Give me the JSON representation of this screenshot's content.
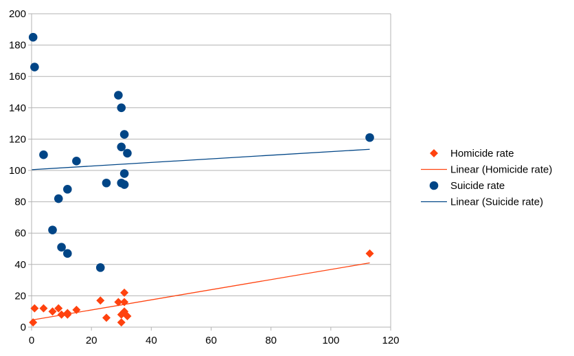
{
  "chart_data": {
    "type": "scatter",
    "title": "",
    "xlabel": "",
    "ylabel": "",
    "xlim": [
      0,
      120
    ],
    "ylim": [
      0,
      200
    ],
    "xticks": [
      0,
      20,
      40,
      60,
      80,
      100,
      120
    ],
    "yticks": [
      0,
      20,
      40,
      60,
      80,
      100,
      120,
      140,
      160,
      180,
      200
    ],
    "grid": "horizontal",
    "legend_position": "right",
    "series": [
      {
        "name": "Homicide rate",
        "marker": "diamond",
        "color": "#ff420e",
        "x": [
          0.5,
          1,
          4,
          7,
          9,
          10,
          12,
          12,
          15,
          23,
          25,
          29,
          30,
          30,
          31,
          31,
          31,
          32,
          113
        ],
        "y": [
          3,
          12,
          12,
          10,
          12,
          8,
          9,
          8,
          11,
          17,
          6,
          16,
          3,
          8,
          22,
          16,
          10,
          7,
          47
        ]
      },
      {
        "name": "Suicide rate",
        "marker": "circle",
        "color": "#004586",
        "x": [
          0.5,
          1,
          4,
          7,
          9,
          10,
          12,
          12,
          15,
          23,
          25,
          29,
          30,
          30,
          30,
          31,
          31,
          31,
          32,
          113
        ],
        "y": [
          185,
          166,
          110,
          62,
          82,
          51,
          88,
          47,
          106,
          38,
          92,
          148,
          140,
          115,
          92,
          123,
          98,
          91,
          111,
          121
        ]
      }
    ],
    "trendlines": [
      {
        "name": "Linear (Homicide rate)",
        "color": "#ff420e",
        "x": [
          0,
          113
        ],
        "y": [
          4.5,
          41
        ]
      },
      {
        "name": "Linear (Suicide rate)",
        "color": "#004586",
        "x": [
          0,
          113
        ],
        "y": [
          100.5,
          113.5
        ]
      }
    ],
    "legend": [
      {
        "label": "Homicide rate",
        "kind": "diamond",
        "color": "#ff420e"
      },
      {
        "label": "Linear (Homicide rate)",
        "kind": "line",
        "color": "#ff420e"
      },
      {
        "label": "Suicide rate",
        "kind": "circle",
        "color": "#004586"
      },
      {
        "label": "Linear (Suicide rate)",
        "kind": "line",
        "color": "#004586"
      }
    ]
  }
}
